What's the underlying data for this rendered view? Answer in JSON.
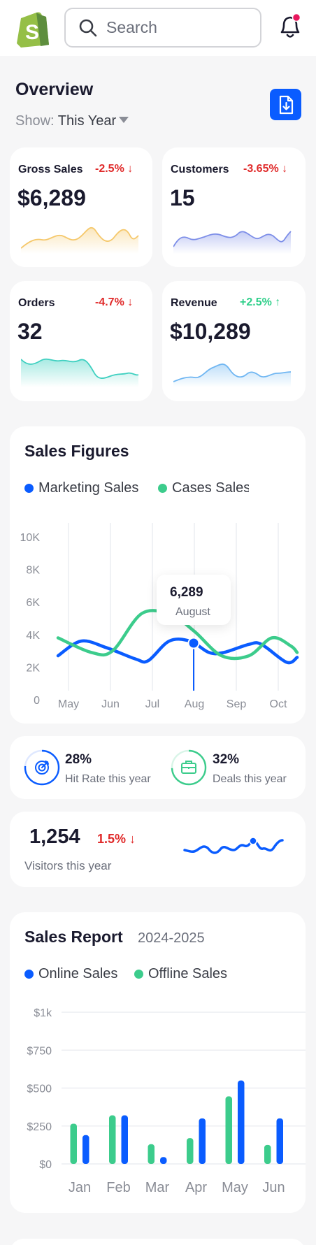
{
  "header": {
    "search_placeholder": "Search",
    "notification_badge_color": "#e8175d",
    "icons": [
      "shopify-logo-icon",
      "search-icon",
      "bell-icon"
    ]
  },
  "overview": {
    "title": "Overview",
    "show_label": "Show:",
    "show_value": "This Year",
    "download_icon": "file-download-icon"
  },
  "stats": [
    {
      "label": "Gross Sales",
      "change": "-2.5%",
      "direction": "down",
      "value": "$6,289",
      "color": "#f5c86b"
    },
    {
      "label": "Customers",
      "change": "-3.65%",
      "direction": "down",
      "value": "15",
      "color": "#7d8ee8"
    },
    {
      "label": "Orders",
      "change": "-4.7%",
      "direction": "down",
      "value": "32",
      "color": "#3ed0c0"
    },
    {
      "label": "Revenue",
      "change": "+2.5%",
      "direction": "up",
      "value": "$10,289",
      "color": "#6fb6f2"
    }
  ],
  "sales_figures": {
    "title": "Sales Figures",
    "tooltip": {
      "value": "6,289",
      "month": "August"
    },
    "chart_data": {
      "type": "line",
      "title": "Sales Figures",
      "categories": [
        "May",
        "Jun",
        "Jul",
        "Aug",
        "Sep",
        "Oct"
      ],
      "y_ticks": [
        "10K",
        "8K",
        "6K",
        "4K",
        "2K",
        "0"
      ],
      "ylim": [
        0,
        10000
      ],
      "grid": "vertical",
      "legend": "top-left",
      "series": [
        {
          "name": "Marketing Sales",
          "color": "#0a5cff",
          "points": [
            [
              -0.25,
              2700
            ],
            [
              0.3,
              3600
            ],
            [
              0.9,
              3200
            ],
            [
              1.6,
              2500
            ],
            [
              1.9,
              2400
            ],
            [
              2.4,
              3600
            ],
            [
              2.9,
              3600
            ],
            [
              3.35,
              2900
            ],
            [
              3.7,
              2900
            ],
            [
              4.3,
              3400
            ],
            [
              4.6,
              3400
            ],
            [
              5.2,
              2300
            ],
            [
              5.45,
              2600
            ]
          ]
        },
        {
          "name": "Cases Sales",
          "color": "#3ccc8c",
          "points": [
            [
              -0.25,
              3800
            ],
            [
              0.55,
              2900
            ],
            [
              1.05,
              3000
            ],
            [
              1.75,
              5300
            ],
            [
              2.45,
              5200
            ],
            [
              3.0,
              4200
            ],
            [
              3.65,
              2700
            ],
            [
              4.3,
              2700
            ],
            [
              4.85,
              3800
            ],
            [
              5.3,
              3300
            ],
            [
              5.45,
              2900
            ]
          ]
        }
      ],
      "highlight": {
        "category": "Aug",
        "value": 6289
      }
    }
  },
  "kpis": [
    {
      "pct": "28%",
      "desc": "Hit Rate this year",
      "icon": "target-icon",
      "color": "#0a5cff"
    },
    {
      "pct": "32%",
      "desc": "Deals this year",
      "icon": "briefcase-icon",
      "color": "#3ccc8c"
    }
  ],
  "visitors": {
    "value": "1,254",
    "change": "1.5%",
    "direction": "down",
    "label": "Visitors this year"
  },
  "sales_report": {
    "title": "Sales Report",
    "year": "2024-2025",
    "chart_data": {
      "type": "bar",
      "title": "Sales Report",
      "categories": [
        "Jan",
        "Feb",
        "Mar",
        "Apr",
        "May",
        "Jun"
      ],
      "y_ticks": [
        "$1k",
        "$750",
        "$500",
        "$250",
        "$0"
      ],
      "ylim": [
        0,
        1000
      ],
      "grid": "horizontal",
      "legend": "top-left",
      "series": [
        {
          "name": "Online Sales",
          "color": "#0a5cff",
          "values": [
            190,
            320,
            45,
            300,
            550,
            300
          ]
        },
        {
          "name": "Offline Sales",
          "color": "#3ccc8c",
          "values": [
            265,
            320,
            130,
            170,
            445,
            125
          ]
        }
      ]
    }
  }
}
